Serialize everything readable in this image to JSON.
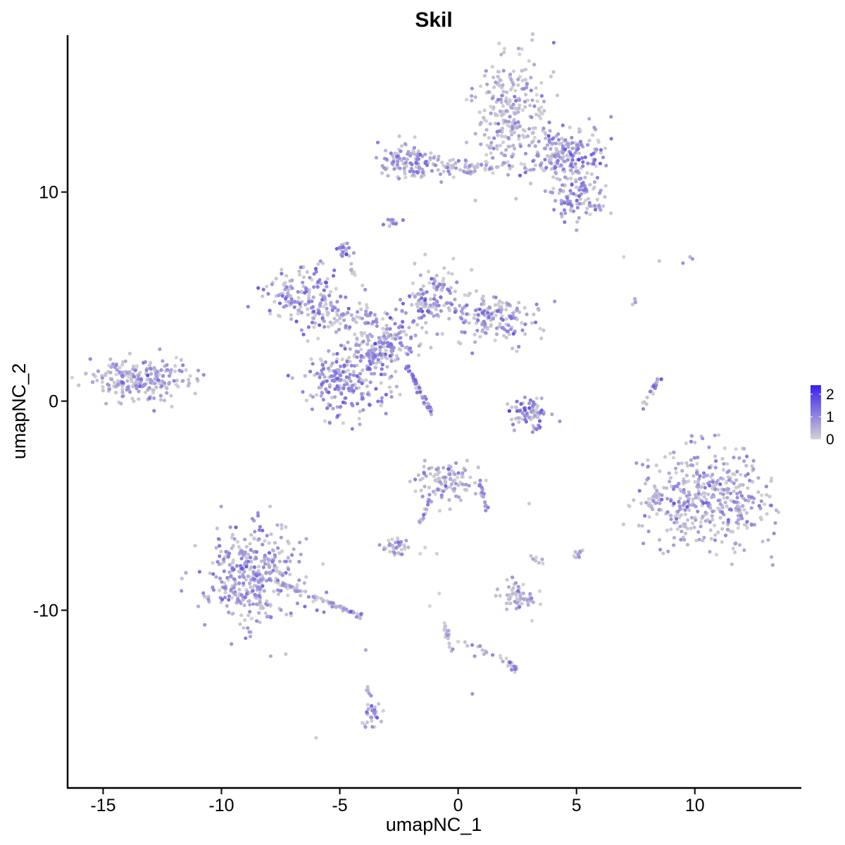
{
  "chart_data": {
    "type": "scatter",
    "title": "Skil",
    "xlabel": "umapNC_1",
    "ylabel": "umapNC_2",
    "xlim": [
      -16.5,
      14.5
    ],
    "ylim": [
      -18.5,
      17.5
    ],
    "x_ticks": [
      -15,
      -10,
      -5,
      0,
      5,
      10
    ],
    "x_tick_labels": [
      "-15",
      "-10",
      "-5",
      "0",
      "5",
      "10"
    ],
    "y_ticks": [
      -10,
      0,
      10
    ],
    "y_tick_labels": [
      "-10",
      "0",
      "10"
    ],
    "grid": false,
    "legend": {
      "placement": "right",
      "type": "colorbar",
      "ticks": [
        0,
        1,
        2
      ],
      "tick_labels": [
        "0",
        "1",
        "2"
      ],
      "range": [
        0,
        2.4
      ],
      "low_color": "#d3d3d3",
      "high_color": "#3a1ff2"
    },
    "point_color_low": "#d3d3d3",
    "point_color_high": "#3a1ff2",
    "clusters": [
      {
        "cx": 2.3,
        "cy": 13.8,
        "sx": 0.8,
        "sy": 1.4,
        "n": 260,
        "expr": 0.45,
        "shape": "blob"
      },
      {
        "cx": 4.6,
        "cy": 11.6,
        "sx": 0.8,
        "sy": 0.7,
        "n": 200,
        "expr": 0.85,
        "shape": "blob"
      },
      {
        "cx": 5.0,
        "cy": 9.8,
        "sx": 0.6,
        "sy": 0.5,
        "n": 90,
        "expr": 0.8,
        "shape": "blob"
      },
      {
        "cx": -2.0,
        "cy": 11.5,
        "sx": 0.6,
        "sy": 0.4,
        "n": 120,
        "expr": 0.8,
        "shape": "blob"
      },
      {
        "cx": 0.5,
        "cy": 11.2,
        "sx": 1.1,
        "sy": 0.2,
        "n": 70,
        "expr": 0.5,
        "shape": "blob"
      },
      {
        "cx": -2.8,
        "cy": 8.5,
        "sx": 0.15,
        "sy": 0.15,
        "n": 12,
        "expr": 0.8,
        "shape": "blob"
      },
      {
        "cx": -13.3,
        "cy": 1.0,
        "sx": 1.1,
        "sy": 0.5,
        "n": 230,
        "expr": 0.6,
        "shape": "blob"
      },
      {
        "cx": -6.5,
        "cy": 5.0,
        "sx": 0.8,
        "sy": 0.8,
        "n": 160,
        "expr": 0.9,
        "shape": "blob"
      },
      {
        "cx": -4.7,
        "cy": 1.0,
        "sx": 0.9,
        "sy": 0.8,
        "n": 230,
        "expr": 0.9,
        "shape": "blob"
      },
      {
        "cx": -3.2,
        "cy": 2.8,
        "sx": 0.7,
        "sy": 0.5,
        "n": 150,
        "expr": 0.85,
        "shape": "blob"
      },
      {
        "cx": -1.2,
        "cy": 4.8,
        "sx": 0.6,
        "sy": 0.8,
        "n": 130,
        "expr": 0.8,
        "shape": "blob"
      },
      {
        "cx": 1.6,
        "cy": 4.0,
        "sx": 0.9,
        "sy": 0.6,
        "n": 160,
        "expr": 0.8,
        "shape": "blob"
      },
      {
        "cx": -4.5,
        "cy": 4.0,
        "sx": 0.9,
        "sy": 0.3,
        "n": 70,
        "expr": 0.85,
        "shape": "blob"
      },
      {
        "cx": -4.8,
        "cy": 7.3,
        "sx": 0.15,
        "sy": 0.2,
        "n": 20,
        "expr": 0.95,
        "shape": "blob"
      },
      {
        "cx": 3.0,
        "cy": -0.6,
        "sx": 0.5,
        "sy": 0.4,
        "n": 80,
        "expr": 1.05,
        "shape": "blob"
      },
      {
        "cx": 10.6,
        "cy": -4.8,
        "sx": 1.3,
        "sy": 1.3,
        "n": 420,
        "expr": 0.7,
        "shape": "blob"
      },
      {
        "cx": 8.3,
        "cy": -4.8,
        "sx": 0.25,
        "sy": 0.3,
        "n": 25,
        "expr": 0.4,
        "shape": "blob"
      },
      {
        "cx": -8.7,
        "cy": -8.3,
        "sx": 1.0,
        "sy": 1.2,
        "n": 380,
        "expr": 0.75,
        "shape": "blob"
      },
      {
        "cx": -0.6,
        "cy": -3.8,
        "sx": 0.6,
        "sy": 0.5,
        "n": 110,
        "expr": 0.5,
        "shape": "blob"
      },
      {
        "cx": -2.6,
        "cy": -6.9,
        "sx": 0.3,
        "sy": 0.2,
        "n": 35,
        "expr": 0.7,
        "shape": "blob"
      },
      {
        "cx": 2.5,
        "cy": -9.3,
        "sx": 0.4,
        "sy": 0.4,
        "n": 60,
        "expr": 0.5,
        "shape": "blob"
      },
      {
        "cx": -3.6,
        "cy": -15.0,
        "sx": 0.2,
        "sy": 0.35,
        "n": 30,
        "expr": 0.8,
        "shape": "blob"
      },
      {
        "cx": 2.3,
        "cy": -12.7,
        "sx": 0.2,
        "sy": 0.15,
        "n": 14,
        "expr": 0.9,
        "shape": "blob"
      },
      {
        "cx": 5.1,
        "cy": -7.3,
        "sx": 0.12,
        "sy": 0.15,
        "n": 10,
        "expr": 0.6,
        "shape": "blob"
      },
      {
        "cx": 3.4,
        "cy": -7.6,
        "sx": 0.12,
        "sy": 0.1,
        "n": 8,
        "expr": 0.2,
        "shape": "blob"
      },
      {
        "x0": -2.2,
        "y0": 1.8,
        "x1": -1.1,
        "y1": -0.6,
        "n": 45,
        "expr": 1.0,
        "shape": "line"
      },
      {
        "x0": 0.9,
        "y0": -3.6,
        "x1": 1.2,
        "y1": -5.3,
        "n": 20,
        "expr": 0.6,
        "shape": "line"
      },
      {
        "x0": -1.1,
        "y0": -4.5,
        "x1": -1.7,
        "y1": -5.9,
        "n": 15,
        "expr": 0.7,
        "shape": "line"
      },
      {
        "x0": -8.0,
        "y0": -8.5,
        "x1": -4.0,
        "y1": -10.3,
        "n": 80,
        "expr": 0.6,
        "shape": "line"
      },
      {
        "x0": 8.5,
        "y0": 1.1,
        "x1": 7.8,
        "y1": -0.3,
        "n": 22,
        "expr": 0.7,
        "shape": "line"
      },
      {
        "x0": -0.6,
        "y0": -10.4,
        "x1": -0.3,
        "y1": -12.0,
        "n": 18,
        "expr": 0.4,
        "shape": "line"
      },
      {
        "x0": 0.2,
        "y0": -11.5,
        "x1": 2.0,
        "y1": -12.4,
        "n": 14,
        "expr": 0.6,
        "shape": "line"
      },
      {
        "x0": -4.6,
        "y0": 6.5,
        "x1": -4.0,
        "y1": 5.2,
        "n": 10,
        "expr": 0.4,
        "shape": "line"
      },
      {
        "x0": -3.8,
        "y0": -13.5,
        "x1": -3.7,
        "y1": -14.3,
        "n": 8,
        "expr": 0.4,
        "shape": "line"
      },
      {
        "x0": 7.4,
        "y0": 4.9,
        "x1": 7.6,
        "y1": 4.5,
        "n": 4,
        "expr": 0.3,
        "shape": "line"
      }
    ],
    "scattered_points": [
      [
        7.0,
        6.9,
        0.0
      ],
      [
        8.5,
        6.7,
        0.2
      ],
      [
        9.5,
        6.6,
        0.9
      ],
      [
        9.8,
        6.9,
        0.4
      ],
      [
        9.9,
        6.8,
        0.8
      ],
      [
        -6.0,
        -16.1,
        0.1
      ],
      [
        0.6,
        -14.0,
        0.8
      ],
      [
        -3.9,
        -11.9,
        0.6
      ],
      [
        -1.2,
        -9.8,
        0.0
      ],
      [
        -0.8,
        -9.2,
        0.0
      ],
      [
        -1.4,
        -7.0,
        0.0
      ],
      [
        -0.9,
        -7.3,
        0.0
      ],
      [
        3.0,
        -4.9,
        0.1
      ],
      [
        0.0,
        -11.5,
        0.0
      ],
      [
        0.7,
        -12.2,
        0.8
      ],
      [
        -1.6,
        -7.3,
        0.0
      ]
    ]
  }
}
